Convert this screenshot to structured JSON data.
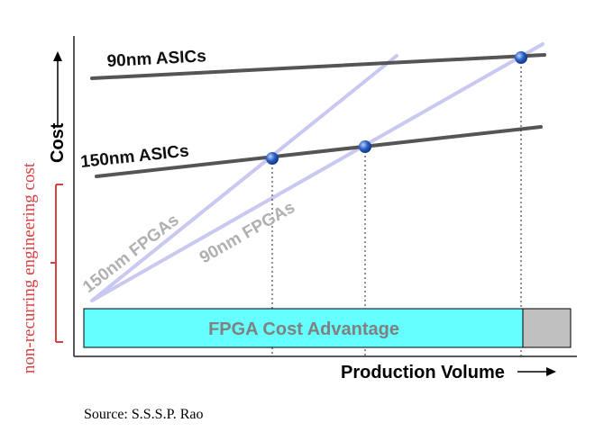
{
  "diagram": {
    "y_axis_label": "Cost",
    "x_axis_label": "Production Volume",
    "nre_label": "non-recurring engineering cost",
    "source": "Source: S.S.S.P. Rao",
    "lines": {
      "asic_90nm": "90nm ASICs",
      "asic_150nm": "150nm ASICs",
      "fpga_150nm": "150nm FPGAs",
      "fpga_90nm": "90nm FPGAs"
    },
    "advantage_bar": {
      "label": "FPGA Cost Advantage",
      "fill_color": "#66ffff",
      "remainder_color": "#c0c0c0"
    },
    "colors": {
      "asic_line": "#555555",
      "fpga_line": "#c8c8f0",
      "nre_color": "#d94040",
      "point_color": "#2a5fc0"
    }
  }
}
